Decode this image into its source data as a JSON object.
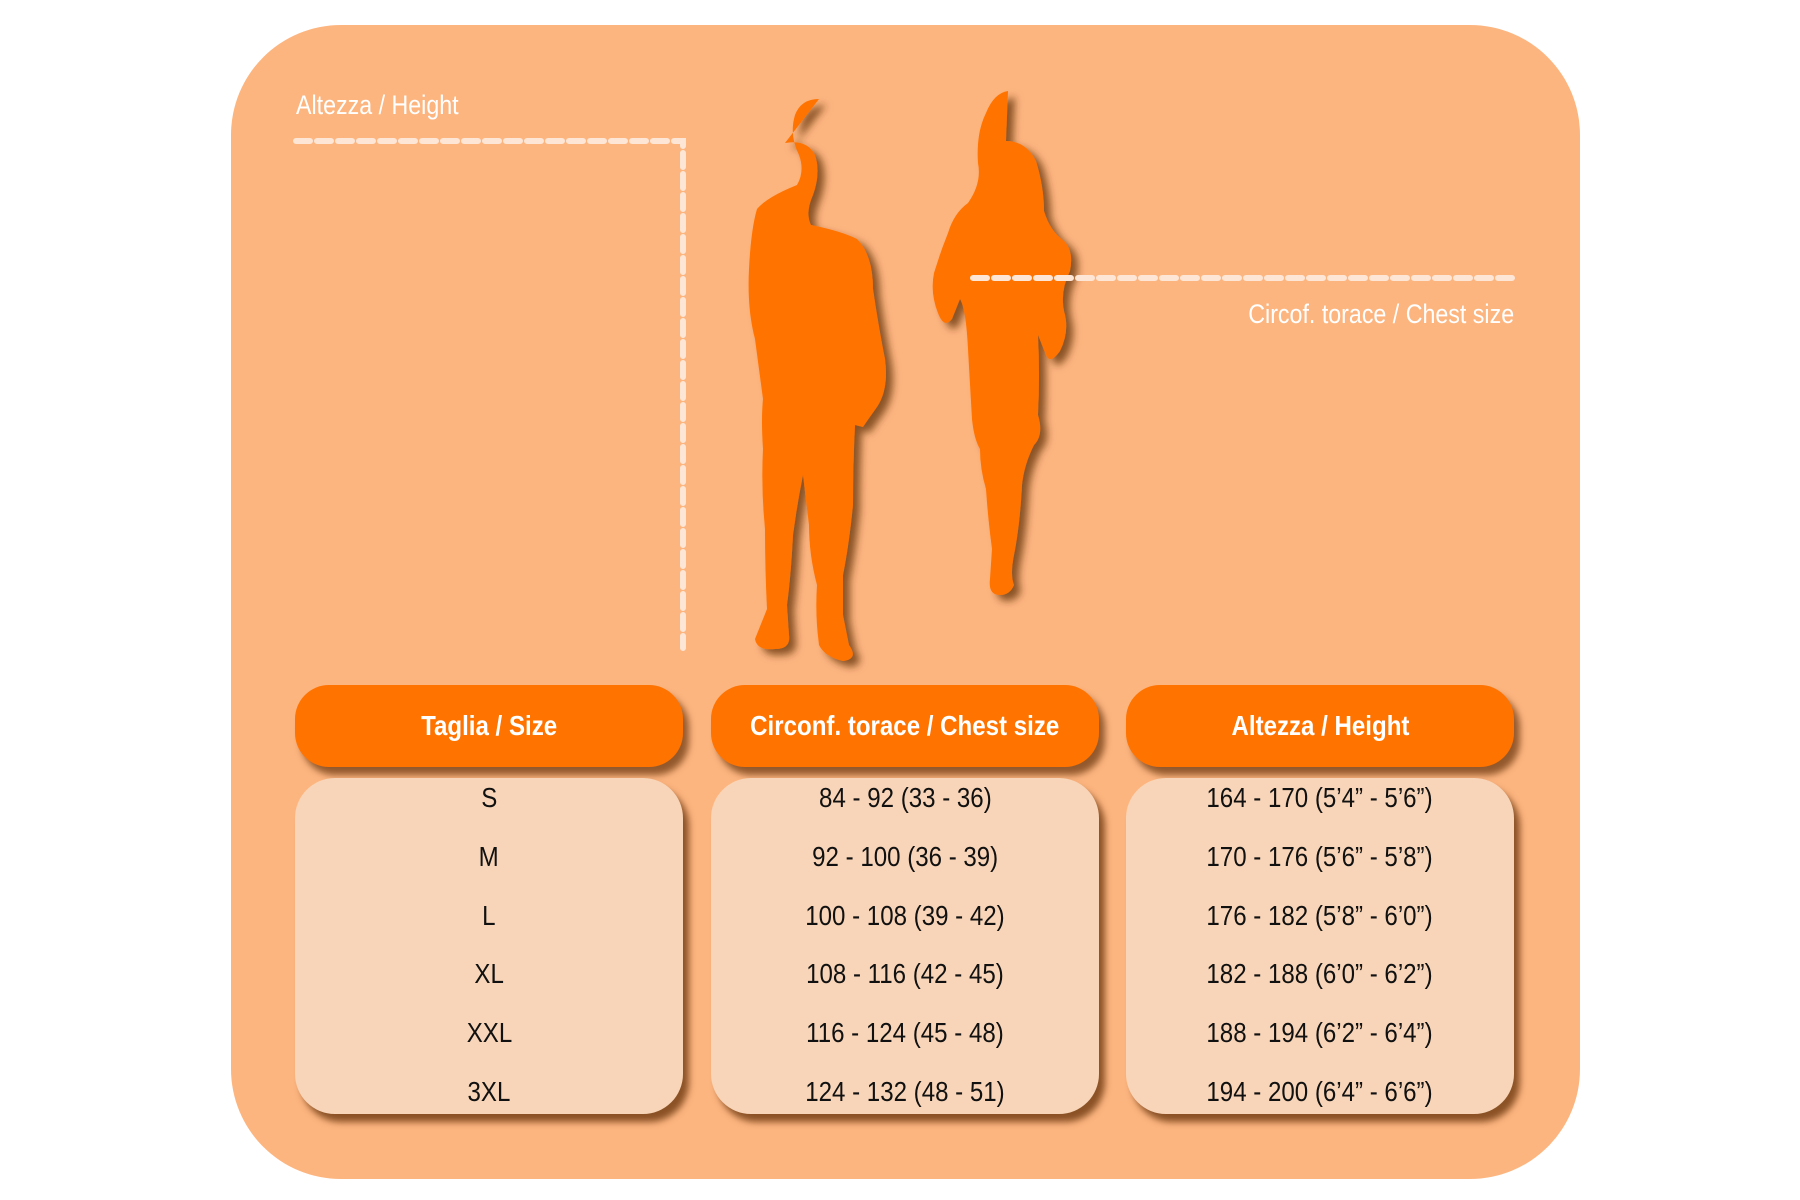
{
  "labels": {
    "height": "Altezza / Height",
    "chest": "Circof. torace / Chest size"
  },
  "colors": {
    "panel": "#fdb57f",
    "accent": "#ff7300",
    "cell_bg": "#f8d5b8"
  },
  "table": {
    "columns": [
      {
        "header": "Taglia / Size",
        "values": [
          "S",
          "M",
          "L",
          "XL",
          "XXL",
          "3XL"
        ]
      },
      {
        "header": "Circonf. torace / Chest size",
        "values": [
          "84 - 92 (33 - 36)",
          "92 - 100 (36 - 39)",
          "100 - 108 (39 - 42)",
          "108 - 116 (42 - 45)",
          "116 - 124 (45 - 48)",
          "124 - 132 (48 - 51)"
        ]
      },
      {
        "header": "Altezza / Height",
        "values": [
          "164 - 170 (5’4” - 5’6”)",
          "170 - 176 (5’6” - 5’8”)",
          "176 - 182 (5’8” - 6’0”)",
          "182 - 188 (6’0” - 6’2”)",
          "188 - 194 (6’2” - 6’4”)",
          "194 - 200 (6’4” - 6’6”)"
        ]
      }
    ]
  }
}
